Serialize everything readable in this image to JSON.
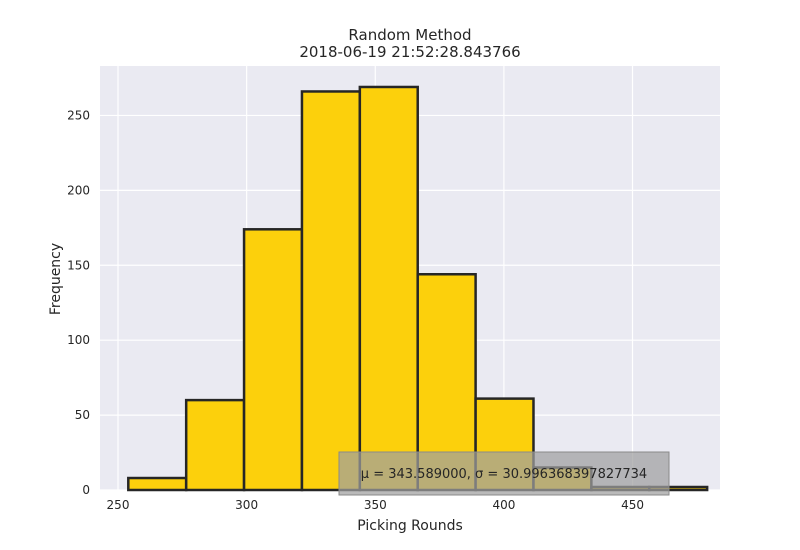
{
  "chart_data": {
    "type": "bar",
    "subtype": "histogram",
    "title": "Random Method",
    "subtitle": "2018-06-19 21:52:28.843766",
    "xlabel": "Picking Rounds",
    "ylabel": "Frequency",
    "xlim": [
      243,
      484
    ],
    "ylim": [
      0,
      283
    ],
    "xticks": [
      250,
      300,
      350,
      400,
      450
    ],
    "yticks": [
      0,
      50,
      100,
      150,
      200,
      250
    ],
    "bin_edges": [
      254,
      276.5,
      299,
      321.5,
      344,
      366.5,
      389,
      411.5,
      434,
      456.5,
      479
    ],
    "values": [
      8,
      60,
      174,
      266,
      269,
      144,
      61,
      15,
      2,
      2
    ],
    "bar_color": "#fcd00c",
    "edge_color": "#262626",
    "background_color": "#eaeaf2",
    "grid": true,
    "annotation": {
      "text": "$\\mu=343.589000,\\ \\sigma=30.996368397827734$",
      "box_color": "#a0a0a0",
      "location": "bottom-right"
    }
  }
}
